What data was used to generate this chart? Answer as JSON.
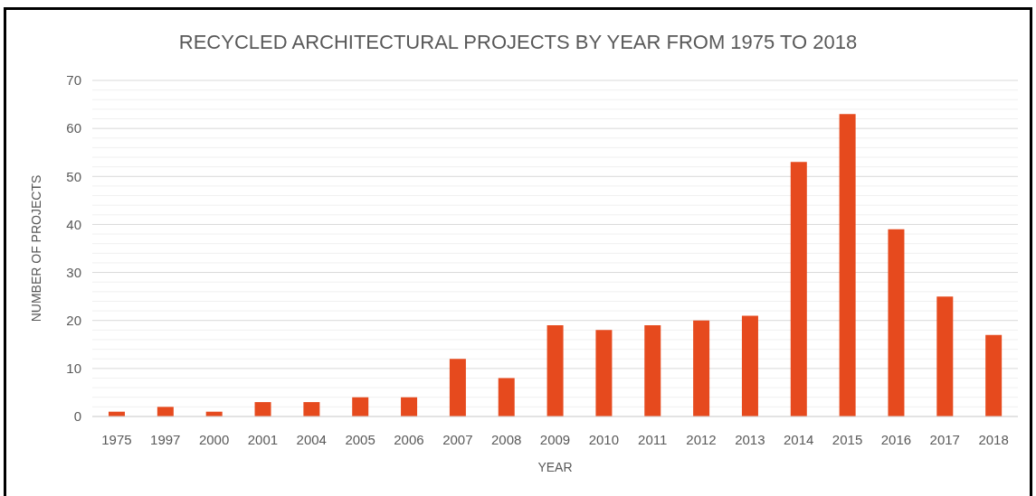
{
  "chart_data": {
    "type": "bar",
    "title": "RECYCLED ARCHITECTURAL PROJECTS BY YEAR FROM 1975 TO 2018",
    "xlabel": "YEAR",
    "ylabel": "NUMBER OF PROJECTS",
    "categories": [
      "1975",
      "1997",
      "2000",
      "2001",
      "2004",
      "2005",
      "2006",
      "2007",
      "2008",
      "2009",
      "2010",
      "2011",
      "2012",
      "2013",
      "2014",
      "2015",
      "2016",
      "2017",
      "2018"
    ],
    "values": [
      1,
      2,
      1,
      3,
      3,
      4,
      4,
      12,
      8,
      19,
      18,
      19,
      20,
      21,
      53,
      63,
      39,
      25,
      17
    ],
    "color": "#e64a1e",
    "ylim": [
      0,
      70
    ],
    "yticks": [
      0,
      {
        "value": 2,
        "label": null
      },
      {
        "value": 4,
        "label": null
      },
      {
        "value": 6,
        "label": null
      },
      {
        "value": 8,
        "label": null
      },
      10,
      {
        "value": 12,
        "label": null
      },
      {
        "value": 14,
        "label": null
      },
      {
        "value": 16,
        "label": null
      },
      {
        "value": 18,
        "label": null
      },
      20,
      {
        "value": 22,
        "label": null
      },
      {
        "value": 24,
        "label": null
      },
      {
        "value": 26,
        "label": null
      },
      {
        "value": 28,
        "label": null
      },
      30,
      {
        "value": 32,
        "label": null
      },
      {
        "value": 34,
        "label": null
      },
      {
        "value": 36,
        "label": null
      },
      {
        "value": 38,
        "label": null
      },
      40,
      {
        "value": 42,
        "label": null
      },
      {
        "value": 44,
        "label": null
      },
      {
        "value": 46,
        "label": null
      },
      {
        "value": 48,
        "label": null
      },
      50,
      {
        "value": 52,
        "label": null
      },
      {
        "value": 54,
        "label": null
      },
      {
        "value": 56,
        "label": null
      },
      {
        "value": 58,
        "label": null
      },
      60,
      {
        "value": 62,
        "label": null
      },
      {
        "value": 64,
        "label": null
      },
      {
        "value": 66,
        "label": null
      },
      {
        "value": 68,
        "label": null
      },
      70
    ],
    "grid": "y"
  }
}
